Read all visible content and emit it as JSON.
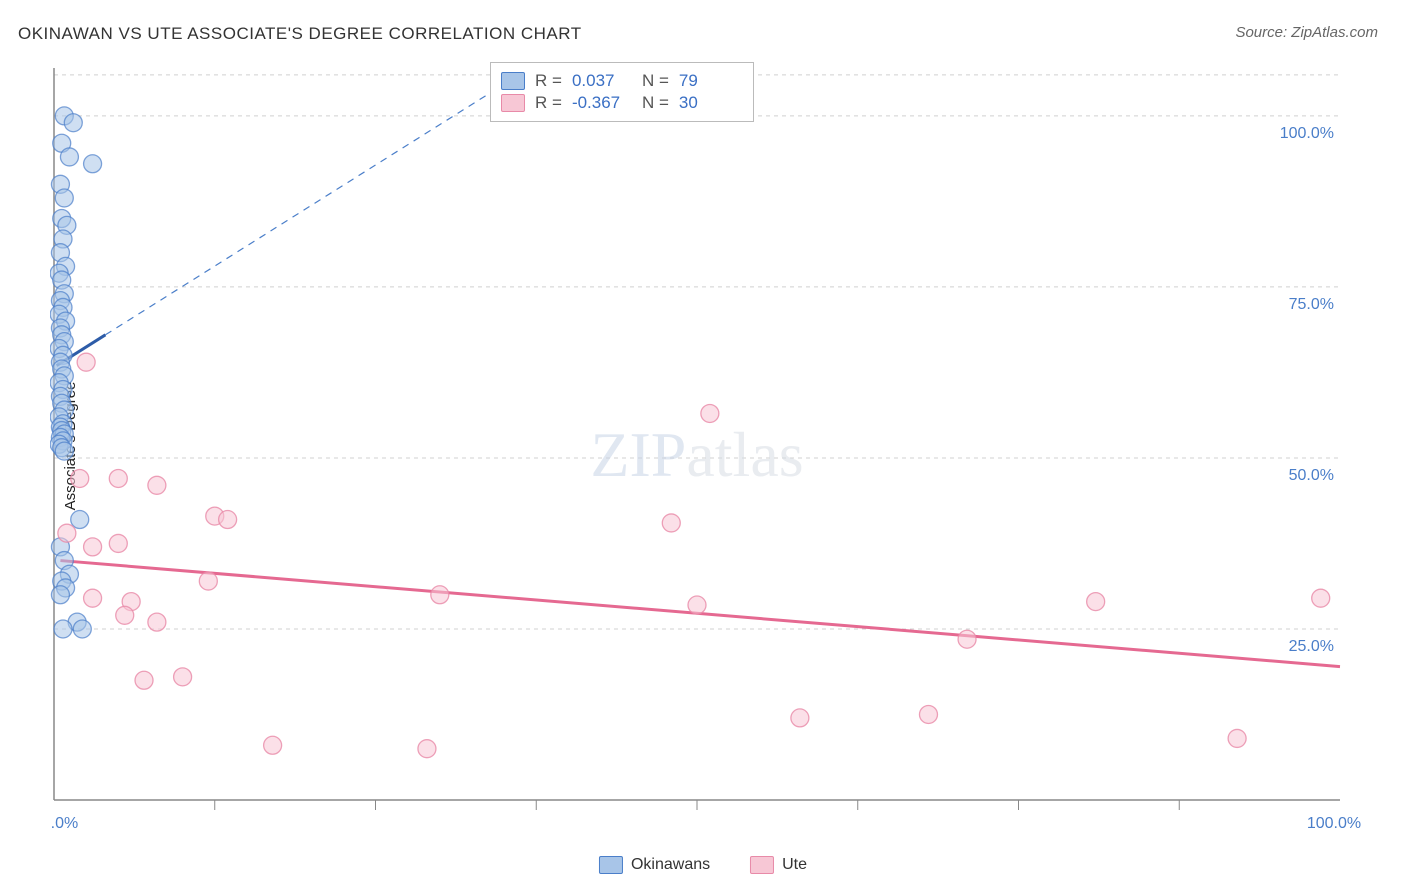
{
  "title": "OKINAWAN VS UTE ASSOCIATE'S DEGREE CORRELATION CHART",
  "source": "Source: ZipAtlas.com",
  "y_axis_label": "Associate's Degree",
  "watermark": {
    "part1": "ZIP",
    "part2": "atlas"
  },
  "chart": {
    "type": "scatter",
    "xlim": [
      0,
      100
    ],
    "ylim": [
      0,
      107
    ],
    "yticks": [
      25,
      50,
      75,
      100
    ],
    "ytick_labels": [
      "25.0%",
      "50.0%",
      "75.0%",
      "100.0%"
    ],
    "xtick_major": [
      0,
      100
    ],
    "xtick_labels": [
      "0.0%",
      "100.0%"
    ],
    "xtick_minor": [
      12.5,
      25,
      37.5,
      50,
      62.5,
      75,
      87.5
    ],
    "grid_color": "#d0d0d0",
    "background": "#ffffff",
    "marker_radius": 9,
    "series": [
      {
        "name": "Okinawans",
        "color_fill": "#a8c5e8",
        "color_stroke": "#4a7ec9",
        "trend": {
          "solid_from": [
            0.2,
            63.5
          ],
          "solid_to": [
            4,
            68
          ],
          "dash_to": [
            37,
            107
          ]
        },
        "points": [
          [
            0.8,
            100
          ],
          [
            1.5,
            99
          ],
          [
            0.6,
            96
          ],
          [
            1.2,
            94
          ],
          [
            3.0,
            93
          ],
          [
            0.5,
            90
          ],
          [
            0.8,
            88
          ],
          [
            0.6,
            85
          ],
          [
            1.0,
            84
          ],
          [
            0.7,
            82
          ],
          [
            0.5,
            80
          ],
          [
            0.9,
            78
          ],
          [
            0.4,
            77
          ],
          [
            0.6,
            76
          ],
          [
            0.8,
            74
          ],
          [
            0.5,
            73
          ],
          [
            0.7,
            72
          ],
          [
            0.4,
            71
          ],
          [
            0.9,
            70
          ],
          [
            0.5,
            69
          ],
          [
            0.6,
            68
          ],
          [
            0.8,
            67
          ],
          [
            0.4,
            66
          ],
          [
            0.7,
            65
          ],
          [
            0.5,
            64
          ],
          [
            0.6,
            63
          ],
          [
            0.8,
            62
          ],
          [
            0.4,
            61
          ],
          [
            0.7,
            60
          ],
          [
            0.5,
            59
          ],
          [
            0.6,
            58
          ],
          [
            0.8,
            57
          ],
          [
            0.4,
            56
          ],
          [
            0.7,
            55
          ],
          [
            0.5,
            54.5
          ],
          [
            0.6,
            54
          ],
          [
            0.8,
            53.5
          ],
          [
            0.5,
            53
          ],
          [
            0.7,
            52.5
          ],
          [
            0.4,
            52
          ],
          [
            0.6,
            51.5
          ],
          [
            0.8,
            51
          ],
          [
            2.0,
            41
          ],
          [
            0.5,
            37
          ],
          [
            0.8,
            35
          ],
          [
            1.2,
            33
          ],
          [
            0.6,
            32
          ],
          [
            0.9,
            31
          ],
          [
            0.5,
            30
          ],
          [
            1.8,
            26
          ],
          [
            0.7,
            25
          ],
          [
            2.2,
            25
          ]
        ]
      },
      {
        "name": "Ute",
        "color_fill": "#f7c7d5",
        "color_stroke": "#e88aa8",
        "trend": {
          "from": [
            0.5,
            35
          ],
          "to": [
            100,
            19.5
          ]
        },
        "points": [
          [
            2.5,
            64
          ],
          [
            51,
            56.5
          ],
          [
            2,
            47
          ],
          [
            5,
            47
          ],
          [
            8,
            46
          ],
          [
            12.5,
            41.5
          ],
          [
            13.5,
            41
          ],
          [
            48,
            40.5
          ],
          [
            1,
            39
          ],
          [
            3,
            37
          ],
          [
            5,
            37.5
          ],
          [
            12,
            32
          ],
          [
            3,
            29.5
          ],
          [
            6,
            29
          ],
          [
            30,
            30
          ],
          [
            50,
            28.5
          ],
          [
            81,
            29
          ],
          [
            98.5,
            29.5
          ],
          [
            5.5,
            27
          ],
          [
            8,
            26
          ],
          [
            71,
            23.5
          ],
          [
            7,
            17.5
          ],
          [
            10,
            18
          ],
          [
            58,
            12
          ],
          [
            68,
            12.5
          ],
          [
            17,
            8
          ],
          [
            29,
            7.5
          ],
          [
            92,
            9
          ]
        ]
      }
    ]
  },
  "stats": [
    {
      "swatch": "blue",
      "R": "0.037",
      "N": "79"
    },
    {
      "swatch": "pink",
      "R": "-0.367",
      "N": "30"
    }
  ],
  "legend": [
    {
      "swatch": "blue",
      "label": "Okinawans"
    },
    {
      "swatch": "pink",
      "label": "Ute"
    }
  ],
  "labels": {
    "R": "R =",
    "N": "N ="
  }
}
